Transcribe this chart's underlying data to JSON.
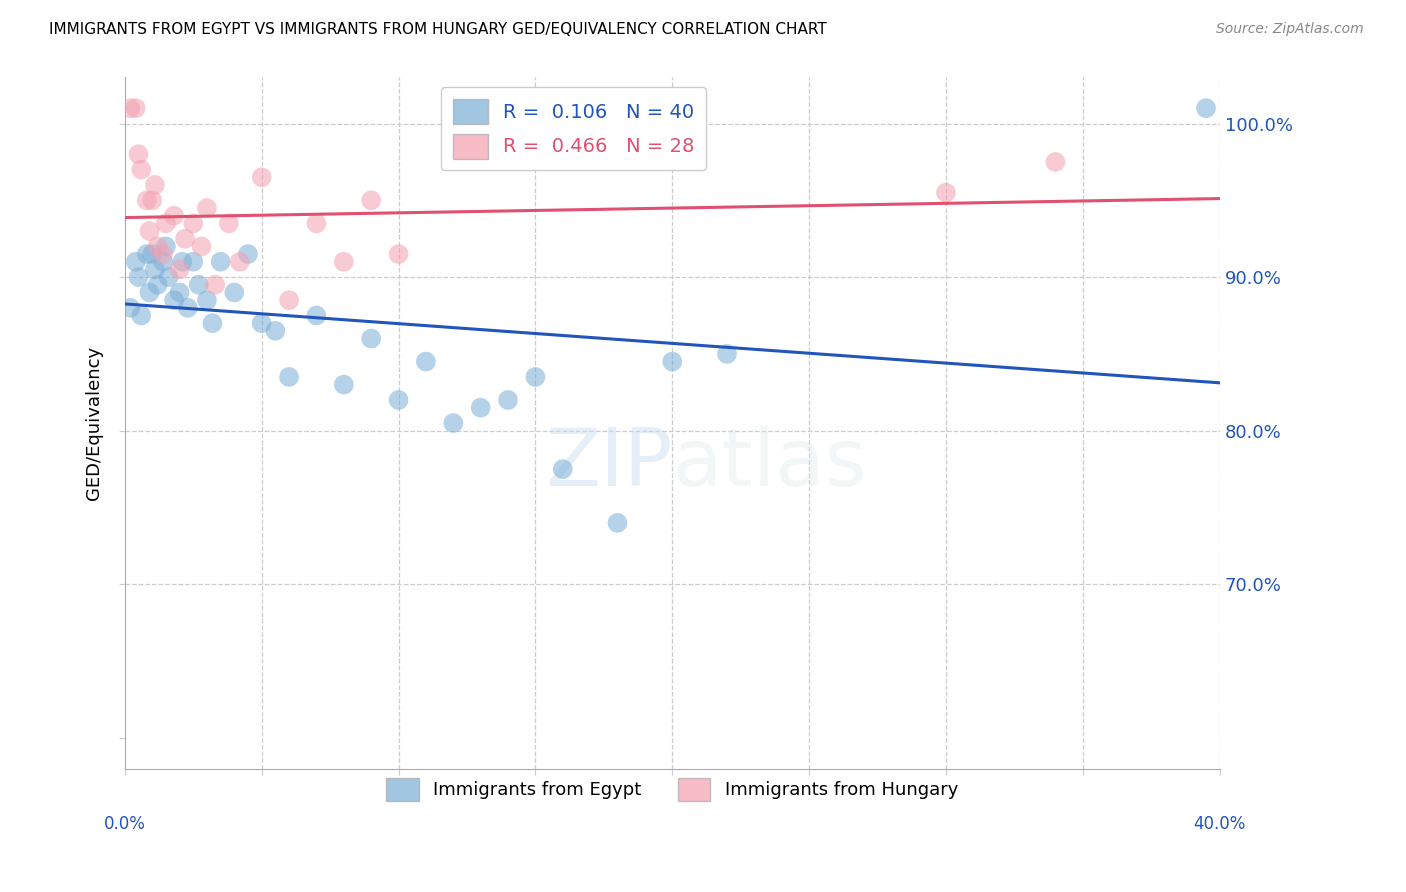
{
  "title": "IMMIGRANTS FROM EGYPT VS IMMIGRANTS FROM HUNGARY GED/EQUIVALENCY CORRELATION CHART",
  "source": "Source: ZipAtlas.com",
  "ylabel": "GED/Equivalency",
  "y_ticks": [
    60.0,
    70.0,
    80.0,
    90.0,
    100.0
  ],
  "y_tick_labels_right": [
    "",
    "70.0%",
    "80.0%",
    "90.0%",
    "100.0%"
  ],
  "x_min": 0.0,
  "x_max": 40.0,
  "y_min": 58.0,
  "y_max": 103.0,
  "egypt_R": 0.106,
  "egypt_N": 40,
  "hungary_R": 0.466,
  "hungary_N": 28,
  "egypt_color": "#7aaed6",
  "hungary_color": "#f4a0b0",
  "egypt_line_color": "#2255bb",
  "hungary_line_color": "#e05070",
  "egypt_points_x": [
    0.2,
    0.4,
    0.5,
    0.6,
    0.8,
    0.9,
    1.0,
    1.1,
    1.2,
    1.4,
    1.5,
    1.6,
    1.8,
    2.0,
    2.1,
    2.3,
    2.5,
    2.7,
    3.0,
    3.2,
    3.5,
    4.0,
    4.5,
    5.0,
    5.5,
    6.0,
    7.0,
    8.0,
    9.0,
    10.0,
    11.0,
    12.0,
    13.0,
    14.0,
    15.0,
    16.0,
    18.0,
    20.0,
    22.0,
    39.5
  ],
  "egypt_points_y": [
    88.0,
    91.0,
    90.0,
    87.5,
    91.5,
    89.0,
    91.5,
    90.5,
    89.5,
    91.0,
    92.0,
    90.0,
    88.5,
    89.0,
    91.0,
    88.0,
    91.0,
    89.5,
    88.5,
    87.0,
    91.0,
    89.0,
    91.5,
    87.0,
    86.5,
    83.5,
    87.5,
    83.0,
    86.0,
    82.0,
    84.5,
    80.5,
    81.5,
    82.0,
    83.5,
    77.5,
    74.0,
    84.5,
    85.0,
    101.0
  ],
  "hungary_points_x": [
    0.2,
    0.4,
    0.5,
    0.6,
    0.8,
    0.9,
    1.0,
    1.1,
    1.2,
    1.4,
    1.5,
    1.8,
    2.0,
    2.2,
    2.5,
    2.8,
    3.0,
    3.3,
    3.8,
    4.2,
    5.0,
    6.0,
    7.0,
    8.0,
    9.0,
    10.0,
    30.0,
    34.0
  ],
  "hungary_points_y": [
    101.0,
    101.0,
    98.0,
    97.0,
    95.0,
    93.0,
    95.0,
    96.0,
    92.0,
    91.5,
    93.5,
    94.0,
    90.5,
    92.5,
    93.5,
    92.0,
    94.5,
    89.5,
    93.5,
    91.0,
    96.5,
    88.5,
    93.5,
    91.0,
    95.0,
    91.5,
    95.5,
    97.5
  ],
  "watermark_text": "ZIPatlas"
}
